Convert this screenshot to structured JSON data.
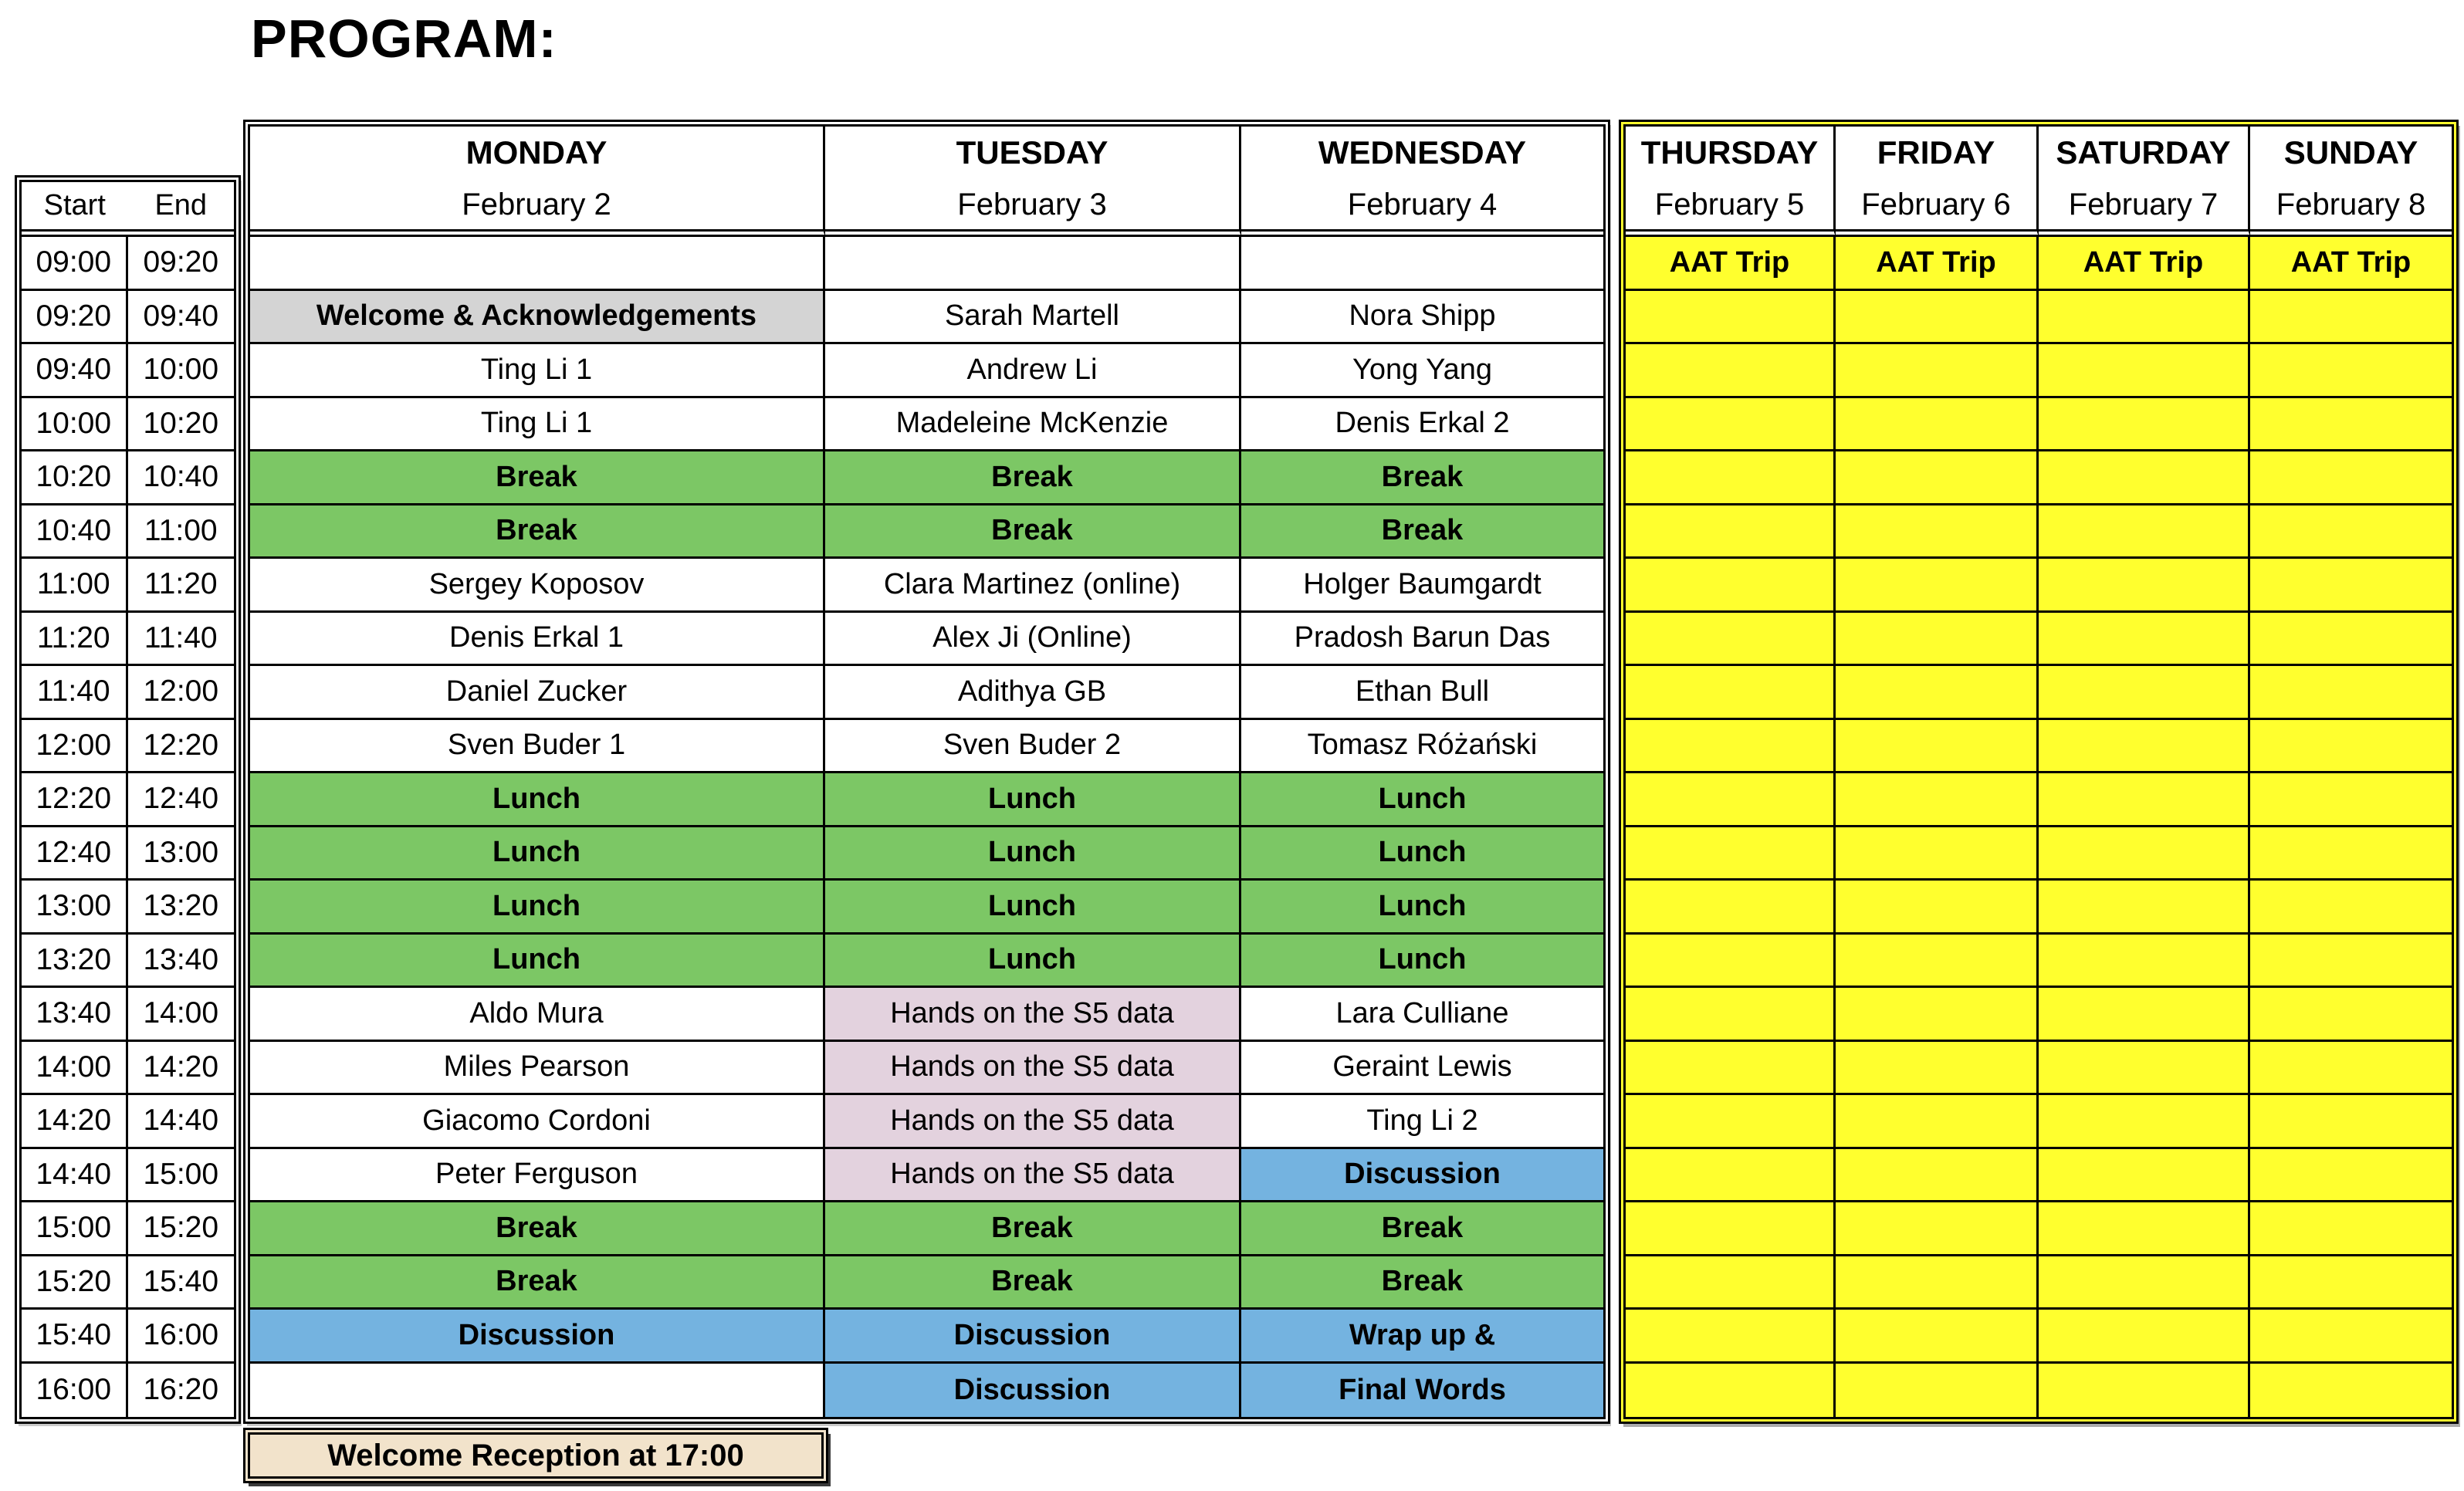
{
  "title": "PROGRAM:",
  "colors": {
    "green": "#7CC765",
    "yellow": "#FFFF2E",
    "blue": "#74B3E0",
    "pink": "#E3D2DE",
    "gray": "#D4D4D4",
    "tan": "#F2E3CB",
    "border": "#000000"
  },
  "time_table": {
    "headers": {
      "start": "Start",
      "end": "End"
    }
  },
  "weekday_headers": [
    {
      "day": "MONDAY",
      "date": "February 2"
    },
    {
      "day": "TUESDAY",
      "date": "February 3"
    },
    {
      "day": "WEDNESDAY",
      "date": "February 4"
    }
  ],
  "weekend_headers": [
    {
      "day": "THURSDAY",
      "date": "February 5"
    },
    {
      "day": "FRIDAY",
      "date": "February 6"
    },
    {
      "day": "SATURDAY",
      "date": "February 7"
    },
    {
      "day": "SUNDAY",
      "date": "February 8"
    }
  ],
  "aat_label": "AAT Trip",
  "reception_label": "Welcome Reception at 17:00",
  "rows": [
    {
      "start": "09:00",
      "end": "09:20",
      "cells": [
        [
          "",
          ""
        ],
        [
          "",
          ""
        ],
        [
          "",
          ""
        ]
      ],
      "aat": true
    },
    {
      "start": "09:20",
      "end": "09:40",
      "cells": [
        [
          "Welcome & Acknowledgements",
          "gray"
        ],
        [
          "Sarah Martell",
          ""
        ],
        [
          "Nora Shipp",
          ""
        ]
      ],
      "aat": false
    },
    {
      "start": "09:40",
      "end": "10:00",
      "cells": [
        [
          "Ting Li 1",
          ""
        ],
        [
          "Andrew Li",
          ""
        ],
        [
          "Yong Yang",
          ""
        ]
      ],
      "aat": false
    },
    {
      "start": "10:00",
      "end": "10:20",
      "cells": [
        [
          "Ting Li 1",
          ""
        ],
        [
          "Madeleine McKenzie",
          ""
        ],
        [
          "Denis Erkal 2",
          ""
        ]
      ],
      "aat": false
    },
    {
      "start": "10:20",
      "end": "10:40",
      "cells": [
        [
          "Break",
          "green"
        ],
        [
          "Break",
          "green"
        ],
        [
          "Break",
          "green"
        ]
      ],
      "aat": false
    },
    {
      "start": "10:40",
      "end": "11:00",
      "cells": [
        [
          "Break",
          "green"
        ],
        [
          "Break",
          "green"
        ],
        [
          "Break",
          "green"
        ]
      ],
      "aat": false
    },
    {
      "start": "11:00",
      "end": "11:20",
      "cells": [
        [
          "Sergey Koposov",
          ""
        ],
        [
          "Clara Martinez (online)",
          ""
        ],
        [
          "Holger Baumgardt",
          ""
        ]
      ],
      "aat": false
    },
    {
      "start": "11:20",
      "end": "11:40",
      "cells": [
        [
          "Denis Erkal 1",
          ""
        ],
        [
          "Alex Ji (Online)",
          ""
        ],
        [
          "Pradosh Barun Das",
          ""
        ]
      ],
      "aat": false
    },
    {
      "start": "11:40",
      "end": "12:00",
      "cells": [
        [
          "Daniel Zucker",
          ""
        ],
        [
          "Adithya GB",
          ""
        ],
        [
          "Ethan Bull",
          ""
        ]
      ],
      "aat": false
    },
    {
      "start": "12:00",
      "end": "12:20",
      "cells": [
        [
          "Sven Buder 1",
          ""
        ],
        [
          "Sven Buder 2",
          ""
        ],
        [
          "Tomasz Różański",
          ""
        ]
      ],
      "aat": false
    },
    {
      "start": "12:20",
      "end": "12:40",
      "cells": [
        [
          "Lunch",
          "green"
        ],
        [
          "Lunch",
          "green"
        ],
        [
          "Lunch",
          "green"
        ]
      ],
      "aat": false
    },
    {
      "start": "12:40",
      "end": "13:00",
      "cells": [
        [
          "Lunch",
          "green"
        ],
        [
          "Lunch",
          "green"
        ],
        [
          "Lunch",
          "green"
        ]
      ],
      "aat": false
    },
    {
      "start": "13:00",
      "end": "13:20",
      "cells": [
        [
          "Lunch",
          "green"
        ],
        [
          "Lunch",
          "green"
        ],
        [
          "Lunch",
          "green"
        ]
      ],
      "aat": false
    },
    {
      "start": "13:20",
      "end": "13:40",
      "cells": [
        [
          "Lunch",
          "green"
        ],
        [
          "Lunch",
          "green"
        ],
        [
          "Lunch",
          "green"
        ]
      ],
      "aat": false
    },
    {
      "start": "13:40",
      "end": "14:00",
      "cells": [
        [
          "Aldo Mura",
          ""
        ],
        [
          "Hands on the S5 data",
          "pink"
        ],
        [
          "Lara Culliane",
          ""
        ]
      ],
      "aat": false
    },
    {
      "start": "14:00",
      "end": "14:20",
      "cells": [
        [
          "Miles Pearson",
          ""
        ],
        [
          "Hands on the S5 data",
          "pink"
        ],
        [
          "Geraint Lewis",
          ""
        ]
      ],
      "aat": false
    },
    {
      "start": "14:20",
      "end": "14:40",
      "cells": [
        [
          "Giacomo Cordoni",
          ""
        ],
        [
          "Hands on the S5 data",
          "pink"
        ],
        [
          "Ting Li 2",
          ""
        ]
      ],
      "aat": false
    },
    {
      "start": "14:40",
      "end": "15:00",
      "cells": [
        [
          "Peter Ferguson",
          ""
        ],
        [
          "Hands on the S5 data",
          "pink"
        ],
        [
          "Discussion",
          "blue"
        ]
      ],
      "aat": false
    },
    {
      "start": "15:00",
      "end": "15:20",
      "cells": [
        [
          "Break",
          "green"
        ],
        [
          "Break",
          "green"
        ],
        [
          "Break",
          "green"
        ]
      ],
      "aat": false
    },
    {
      "start": "15:20",
      "end": "15:40",
      "cells": [
        [
          "Break",
          "green"
        ],
        [
          "Break",
          "green"
        ],
        [
          "Break",
          "green"
        ]
      ],
      "aat": false
    },
    {
      "start": "15:40",
      "end": "16:00",
      "cells": [
        [
          "Discussion",
          "blue"
        ],
        [
          "Discussion",
          "blue"
        ],
        [
          "Wrap up &",
          "blue"
        ]
      ],
      "aat": false
    },
    {
      "start": "16:00",
      "end": "16:20",
      "cells": [
        [
          "",
          ""
        ],
        [
          "Discussion",
          "blue"
        ],
        [
          "Final Words",
          "blue"
        ]
      ],
      "aat": false
    }
  ]
}
